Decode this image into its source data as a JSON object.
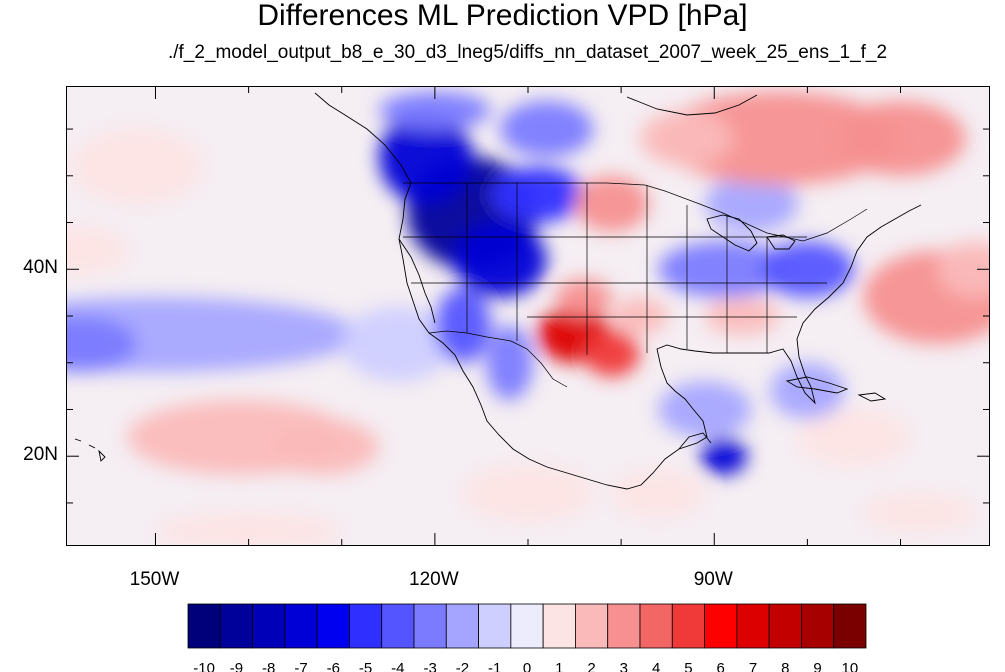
{
  "title": "Differences ML Prediction VPD [hPa]",
  "subtitle": "./f_2_model_output_b8_e_30_d3_lneg5/diffs_nn_dataset_2007_week_25_ens_1_f_2",
  "map": {
    "projection": "lat-lon",
    "lon_range": [
      -159.5,
      -60.5
    ],
    "lat_range": [
      10.5,
      59.5
    ],
    "x_ticks": [
      {
        "lon": -150,
        "label": "150W"
      },
      {
        "lon": -120,
        "label": "120W"
      },
      {
        "lon": -90,
        "label": "90W"
      }
    ],
    "y_ticks": [
      {
        "lat": 40,
        "label": "40N"
      },
      {
        "lat": 20,
        "label": "20N"
      }
    ],
    "minor_lon_step": 10,
    "minor_lat_step": 5
  },
  "colorbar": {
    "levels": [
      "-10",
      "-9",
      "-8",
      "-7",
      "-6",
      "-5",
      "-4",
      "-3",
      "-2",
      "-1",
      "0",
      "1",
      "2",
      "3",
      "4",
      "5",
      "6",
      "7",
      "8",
      "9",
      "10"
    ],
    "colors": [
      "#00007a",
      "#00009a",
      "#0000b8",
      "#0000d6",
      "#0000f0",
      "#2f2fff",
      "#5555ff",
      "#7b7bff",
      "#a5a5ff",
      "#cfcfff",
      "#ececfc",
      "#fde4e4",
      "#fbbaba",
      "#f79090",
      "#f26666",
      "#f03a3a",
      "#ff0000",
      "#dd0000",
      "#c20000",
      "#a60000",
      "#7a0000"
    ]
  },
  "field_blobs": [
    {
      "lon": -150,
      "lat": 33,
      "rx": 22,
      "ry": 4,
      "v": -2.5
    },
    {
      "lon": -158,
      "lat": 32,
      "rx": 6,
      "ry": 3,
      "v": -3
    },
    {
      "lon": -141,
      "lat": 22,
      "rx": 12,
      "ry": 4,
      "v": 1.6
    },
    {
      "lon": -132,
      "lat": 21,
      "rx": 6,
      "ry": 3,
      "v": 2.2
    },
    {
      "lon": -158,
      "lat": 42,
      "rx": 5,
      "ry": 2.5,
      "v": 1.3
    },
    {
      "lon": -152,
      "lat": 51,
      "rx": 7,
      "ry": 4,
      "v": 1.1
    },
    {
      "lon": -124,
      "lat": 32,
      "rx": 6,
      "ry": 4,
      "v": -1.4
    },
    {
      "lon": -116,
      "lat": 46,
      "rx": 7,
      "ry": 6,
      "v": -9
    },
    {
      "lon": -121,
      "lat": 52,
      "rx": 5,
      "ry": 5,
      "v": -7
    },
    {
      "lon": -113,
      "lat": 41,
      "rx": 5,
      "ry": 4,
      "v": -7
    },
    {
      "lon": -109,
      "lat": 48,
      "rx": 5,
      "ry": 3,
      "v": -5
    },
    {
      "lon": -117,
      "lat": 34,
      "rx": 3,
      "ry": 4,
      "v": -4
    },
    {
      "lon": -112,
      "lat": 30,
      "rx": 2.5,
      "ry": 4,
      "v": -3.5
    },
    {
      "lon": -105,
      "lat": 33,
      "rx": 4,
      "ry": 3,
      "v": 7
    },
    {
      "lon": -101,
      "lat": 31,
      "rx": 3,
      "ry": 2.5,
      "v": 5
    },
    {
      "lon": -104,
      "lat": 37,
      "rx": 3,
      "ry": 2,
      "v": 3
    },
    {
      "lon": -98,
      "lat": 35,
      "rx": 3,
      "ry": 2,
      "v": 2
    },
    {
      "lon": -101,
      "lat": 47,
      "rx": 4,
      "ry": 3,
      "v": 3
    },
    {
      "lon": -89,
      "lat": 40,
      "rx": 7,
      "ry": 3,
      "v": -3
    },
    {
      "lon": -80,
      "lat": 40,
      "rx": 5,
      "ry": 3,
      "v": -4
    },
    {
      "lon": -87,
      "lat": 35,
      "rx": 4,
      "ry": 2,
      "v": 2
    },
    {
      "lon": -86,
      "lat": 47,
      "rx": 5,
      "ry": 3,
      "v": -2
    },
    {
      "lon": -83,
      "lat": 54,
      "rx": 13,
      "ry": 5,
      "v": 2.6
    },
    {
      "lon": -70,
      "lat": 54,
      "rx": 7,
      "ry": 4,
      "v": 3.4
    },
    {
      "lon": -93,
      "lat": 54,
      "rx": 5,
      "ry": 3,
      "v": 2.2
    },
    {
      "lon": -66,
      "lat": 37,
      "rx": 8,
      "ry": 5,
      "v": 2.6
    },
    {
      "lon": -62,
      "lat": 40,
      "rx": 4,
      "ry": 3,
      "v": 1.8
    },
    {
      "lon": -91,
      "lat": 25,
      "rx": 5,
      "ry": 3,
      "v": -2
    },
    {
      "lon": -89,
      "lat": 20,
      "rx": 2.5,
      "ry": 2,
      "v": -7
    },
    {
      "lon": -75,
      "lat": 22,
      "rx": 6,
      "ry": 3,
      "v": 1.2
    },
    {
      "lon": -80,
      "lat": 27,
      "rx": 4,
      "ry": 3,
      "v": -2
    },
    {
      "lon": -110,
      "lat": 16,
      "rx": 7,
      "ry": 3,
      "v": 0.9
    },
    {
      "lon": -68,
      "lat": 14,
      "rx": 6,
      "ry": 2,
      "v": 0.8
    },
    {
      "lon": -96,
      "lat": 16,
      "rx": 5,
      "ry": 2.5,
      "v": 0.8
    },
    {
      "lon": -140,
      "lat": 12,
      "rx": 10,
      "ry": 2,
      "v": 0.9
    },
    {
      "lon": -120,
      "lat": 57,
      "rx": 6,
      "ry": 2,
      "v": -3
    },
    {
      "lon": -108,
      "lat": 55,
      "rx": 5,
      "ry": 3,
      "v": -3
    }
  ]
}
